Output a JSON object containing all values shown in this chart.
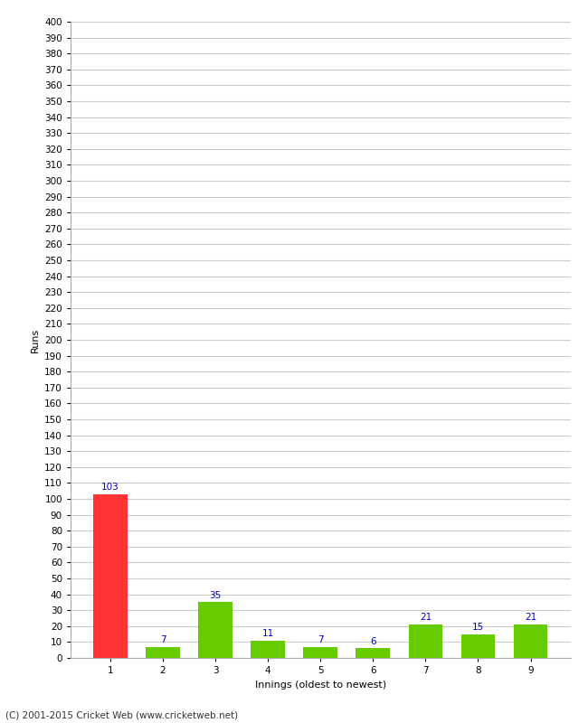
{
  "title": "",
  "categories": [
    "1",
    "2",
    "3",
    "4",
    "5",
    "6",
    "7",
    "8",
    "9"
  ],
  "values": [
    103,
    7,
    35,
    11,
    7,
    6,
    21,
    15,
    21
  ],
  "bar_colors": [
    "#ff3333",
    "#66cc00",
    "#66cc00",
    "#66cc00",
    "#66cc00",
    "#66cc00",
    "#66cc00",
    "#66cc00",
    "#66cc00"
  ],
  "xlabel": "Innings (oldest to newest)",
  "ylabel": "Runs",
  "ylim": [
    0,
    400
  ],
  "background_color": "#ffffff",
  "grid_color": "#cccccc",
  "label_color": "#0000cc",
  "label_fontsize": 7.5,
  "axis_fontsize": 8,
  "tick_fontsize": 7.5,
  "footer": "(C) 2001-2015 Cricket Web (www.cricketweb.net)"
}
